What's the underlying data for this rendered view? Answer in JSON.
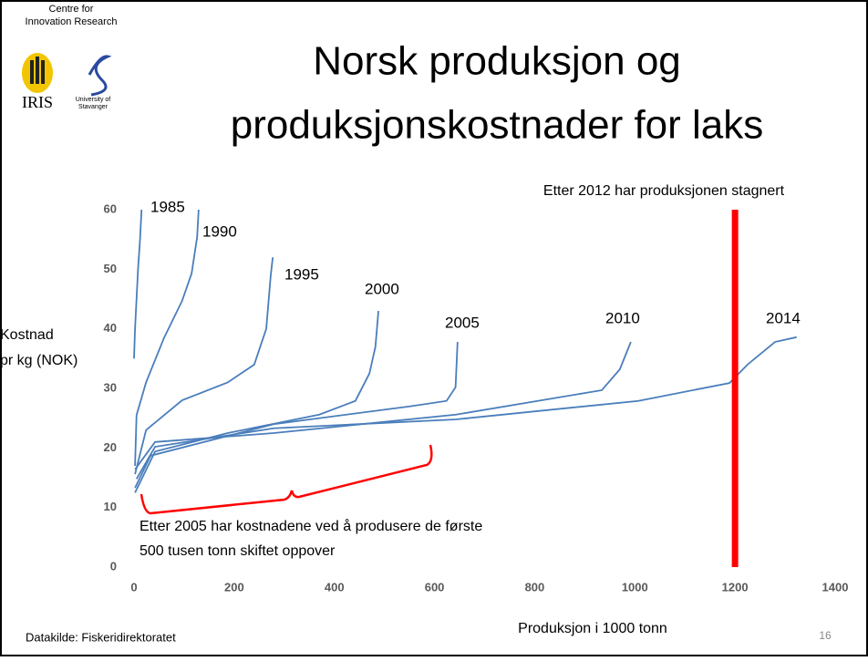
{
  "header": {
    "org_line1": "Centre for",
    "org_line2": "Innovation Research",
    "logo_left": "IRIS",
    "logo_right_line1": "University of",
    "logo_right_line2": "Stavanger"
  },
  "title_line1": "Norsk produksjon og",
  "title_line2": "produksjonskostnader for laks",
  "source": "Datakilde: Fiskeridirektoratet",
  "page_number": "16",
  "chart_data": {
    "type": "line",
    "y_label_line1": "Kostnad",
    "y_label_line2": "pr kg (NOK)",
    "x_label": "Produksjon i 1000 tonn",
    "xlim": [
      0,
      1400
    ],
    "xticks": [
      0,
      200,
      400,
      600,
      800,
      1000,
      1200,
      1400
    ],
    "ylim": [
      0,
      60
    ],
    "yticks": [
      0,
      10,
      20,
      30,
      40,
      50,
      60
    ],
    "reference_line": {
      "x": 1200,
      "color": "#ff0000",
      "label": "Etter 2012 har produksjonen stagnert"
    },
    "annotation_line1": "Etter 2005 har kostnadene ved å produsere de første",
    "annotation_line2": "500 tusen tonn skiftet oppover",
    "series": [
      {
        "name": "1985",
        "color": "#4a7ebb",
        "x": [
          0,
          2,
          5,
          8,
          12,
          15
        ],
        "values": [
          35,
          40,
          45,
          50,
          55,
          60
        ]
      },
      {
        "name": "1990",
        "color": "#4a7ebb",
        "x": [
          2,
          5,
          24,
          60,
          96,
          115,
          126,
          129
        ],
        "values": [
          17,
          25.5,
          31,
          38.5,
          44.7,
          49.3,
          55.4,
          60
        ]
      },
      {
        "name": "1995",
        "color": "#4a7ebb",
        "x": [
          2,
          24,
          96,
          187,
          240,
          264,
          273,
          277
        ],
        "values": [
          15.6,
          23,
          28,
          31,
          34,
          40,
          49,
          52
        ]
      },
      {
        "name": "2000",
        "color": "#4a7ebb",
        "x": [
          2,
          42,
          187,
          370,
          442,
          470,
          482,
          488
        ],
        "values": [
          12.5,
          19.4,
          22.5,
          25.6,
          27.9,
          32.5,
          37,
          43
        ]
      },
      {
        "name": "2005",
        "color": "#4a7ebb",
        "x": [
          2,
          33,
          279,
          552,
          624,
          642,
          646
        ],
        "values": [
          13.3,
          18.7,
          24,
          27,
          27.9,
          30.2,
          37.8
        ]
      },
      {
        "name": "2010",
        "color": "#4a7ebb",
        "x": [
          2,
          42,
          279,
          643,
          934,
          970,
          992
        ],
        "values": [
          16.4,
          21,
          22.5,
          25.6,
          29.7,
          33.2,
          37.8
        ]
      },
      {
        "name": "2014",
        "color": "#4a7ebb",
        "x": [
          5,
          42,
          279,
          643,
          1007,
          1189,
          1225,
          1280,
          1323
        ],
        "values": [
          14.8,
          20.2,
          23.3,
          24.8,
          27.9,
          30.9,
          34,
          37.8,
          38.6
        ]
      }
    ]
  }
}
